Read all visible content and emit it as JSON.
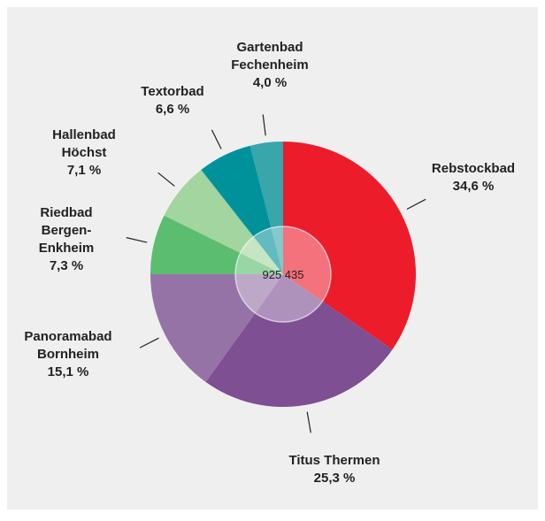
{
  "chart_data": {
    "type": "pie",
    "categories": [
      "Rebstockbad",
      "Titus Thermen",
      "Panoramabad\nBornheim",
      "Riedbad\nBergen-\nEnkheim",
      "Hallenbad\nHöchst",
      "Textorbad",
      "Gartenbad\nFechenheim"
    ],
    "values": [
      34.6,
      25.3,
      15.1,
      7.3,
      7.1,
      6.6,
      4.0
    ],
    "value_labels": [
      "34,6 %",
      "25,3 %",
      "15,1 %",
      "7,3 %",
      "7,1 %",
      "6,6 %",
      "4,0 %"
    ],
    "colors": [
      "#ec1c2a",
      "#7e4f92",
      "#9673a7",
      "#5bbd6f",
      "#a2d59f",
      "#00929a",
      "#38a6ab"
    ],
    "center_label": "925 435"
  }
}
